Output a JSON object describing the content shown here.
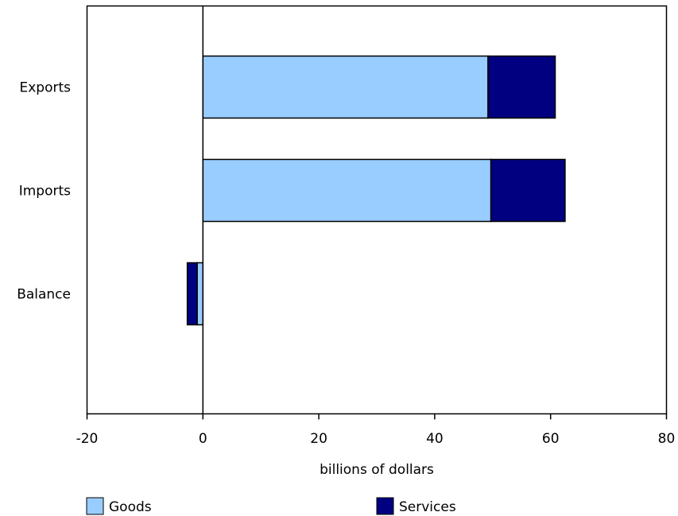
{
  "chart_data": {
    "type": "bar",
    "orientation": "horizontal",
    "stacked": true,
    "categories": [
      "Exports",
      "Imports",
      "Balance"
    ],
    "series": [
      {
        "name": "Goods",
        "values": [
          49.2,
          49.7,
          -1.0
        ],
        "color": "#99ccff"
      },
      {
        "name": "Services",
        "values": [
          11.6,
          12.8,
          -1.7
        ],
        "color": "#000080"
      }
    ],
    "xlabel": "billions of dollars",
    "ylabel": "",
    "xlim": [
      -20,
      80
    ],
    "xticks": [
      "-20",
      "0",
      "20",
      "40",
      "60",
      "80"
    ],
    "grid": false,
    "legend_position": "bottom"
  }
}
